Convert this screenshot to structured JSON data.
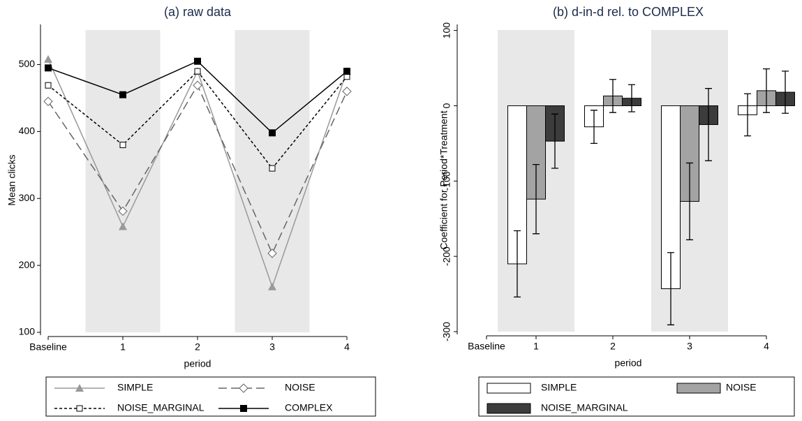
{
  "chart_data": [
    {
      "type": "line",
      "title": "(a) raw data",
      "x_label": "period",
      "y_label": "Mean clicks",
      "categories": [
        "Baseline",
        "1",
        "2",
        "3",
        "4"
      ],
      "shaded": [
        1,
        3
      ],
      "ylim": [
        100,
        560
      ],
      "yticks": [
        100,
        200,
        300,
        400,
        500
      ],
      "series": [
        {
          "name": "SIMPLE",
          "color": "#999999",
          "style": "solid",
          "marker": "triangle",
          "values": [
            508,
            258,
            490,
            168,
            490
          ]
        },
        {
          "name": "NOISE",
          "color": "#666666",
          "style": "longdash",
          "marker": "diamond",
          "values": [
            445,
            281,
            469,
            218,
            460
          ]
        },
        {
          "name": "NOISE_MARGINAL",
          "color": "#000000",
          "style": "shortdash",
          "marker": "square-open",
          "values": [
            469,
            380,
            490,
            345,
            482
          ]
        },
        {
          "name": "COMPLEX",
          "color": "#000000",
          "style": "solid",
          "marker": "square",
          "values": [
            495,
            455,
            505,
            398,
            490
          ]
        }
      ]
    },
    {
      "type": "bar",
      "title": "(b) d-in-d rel. to COMPLEX",
      "x_label": "period",
      "y_label": "Coefficient for Period*Treatment",
      "categories": [
        "Baseline",
        "1",
        "2",
        "3",
        "4"
      ],
      "shaded": [
        1,
        3
      ],
      "ylim": [
        -300,
        108
      ],
      "yticks": [
        -300,
        -200,
        -100,
        0,
        100
      ],
      "series": [
        {
          "name": "SIMPLE",
          "color": "#ffffff",
          "values": [
            null,
            -210,
            -28,
            -243,
            -12
          ],
          "errors": [
            null,
            44,
            22,
            48,
            28
          ]
        },
        {
          "name": "NOISE",
          "color": "#a3a3a3",
          "values": [
            null,
            -124,
            13,
            -127,
            20
          ],
          "errors": [
            null,
            46,
            22,
            51,
            29
          ]
        },
        {
          "name": "NOISE_MARGINAL",
          "color": "#3c3c3c",
          "values": [
            null,
            -47,
            10,
            -25,
            18
          ],
          "errors": [
            null,
            36,
            18,
            48,
            28
          ]
        }
      ]
    }
  ]
}
